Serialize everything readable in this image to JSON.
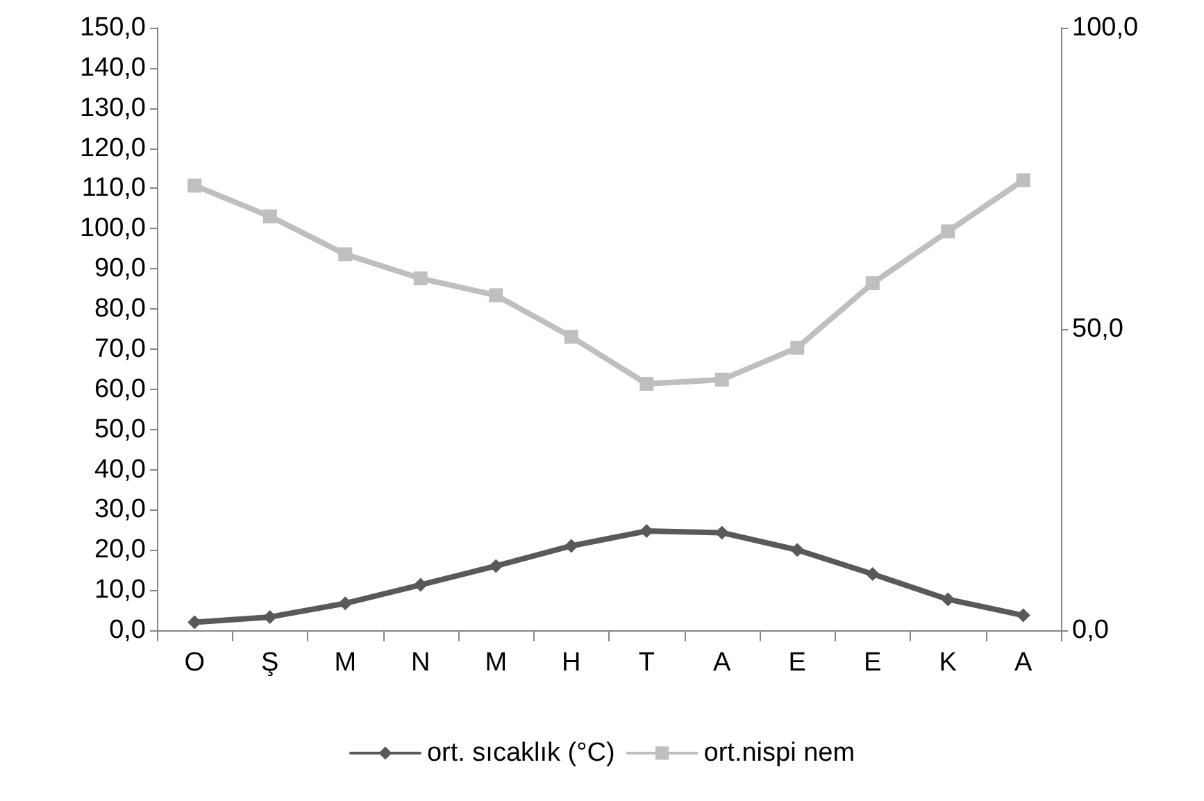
{
  "chart_data": {
    "type": "line",
    "categories": [
      "O",
      "Ş",
      "M",
      "N",
      "M",
      "H",
      "T",
      "A",
      "E",
      "E",
      "K",
      "A"
    ],
    "series": [
      {
        "name": "ort. sıcaklık (°C)",
        "color": "#595959",
        "marker": "diamond",
        "values": [
          2.0,
          3.3,
          6.7,
          11.3,
          16.0,
          21.0,
          24.7,
          24.3,
          20.0,
          14.0,
          7.7,
          3.7
        ]
      },
      {
        "name": "ort.nispi nem",
        "color": "#bfbfbf",
        "marker": "square",
        "axis": "y2",
        "values": [
          73.8,
          68.7,
          62.4,
          58.4,
          55.6,
          48.7,
          40.9,
          41.6,
          46.9,
          57.6,
          66.2,
          74.7
        ]
      }
    ],
    "ylim": [
      0,
      150
    ],
    "yticks": [
      {
        "value": 0,
        "label": "0,0"
      },
      {
        "value": 10,
        "label": "10,0"
      },
      {
        "value": 20,
        "label": "20,0"
      },
      {
        "value": 30,
        "label": "30,0"
      },
      {
        "value": 40,
        "label": "40,0"
      },
      {
        "value": 50,
        "label": "50,0"
      },
      {
        "value": 60,
        "label": "60,0"
      },
      {
        "value": 70,
        "label": "70,0"
      },
      {
        "value": 80,
        "label": "80,0"
      },
      {
        "value": 90,
        "label": "90,0"
      },
      {
        "value": 100,
        "label": "100,0"
      },
      {
        "value": 110,
        "label": "110,0"
      },
      {
        "value": 120,
        "label": "120,0"
      },
      {
        "value": 130,
        "label": "130,0"
      },
      {
        "value": 140,
        "label": "140,0"
      },
      {
        "value": 150,
        "label": "150,0"
      }
    ],
    "y2lim": [
      0,
      100
    ],
    "y2ticks": [
      {
        "value": 0,
        "label": "0,0"
      },
      {
        "value": 50,
        "label": "50,0"
      },
      {
        "value": 100,
        "label": "100,0"
      }
    ],
    "grid": false,
    "legend": "bottom",
    "line_style": "solid"
  }
}
